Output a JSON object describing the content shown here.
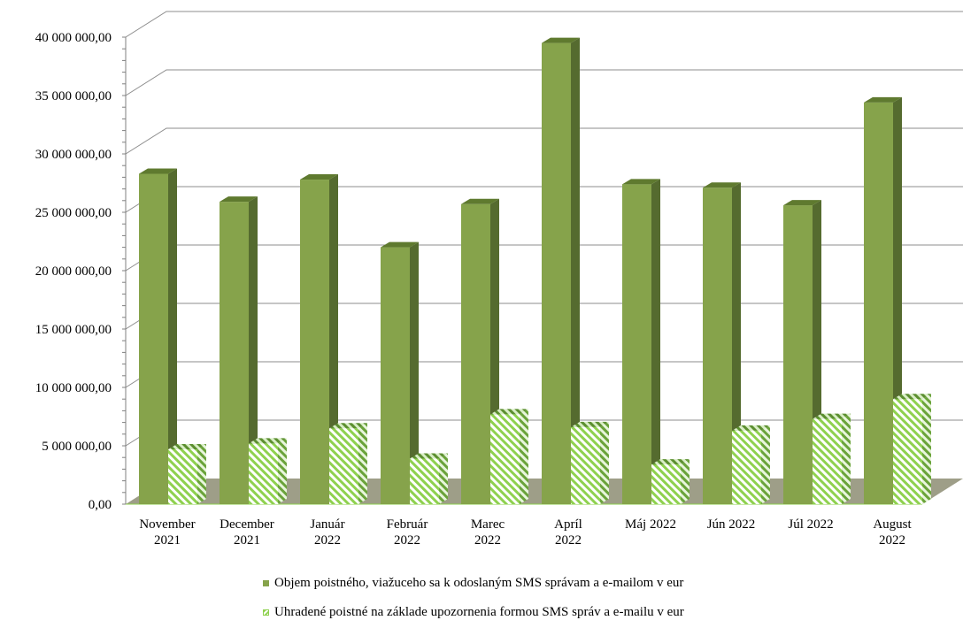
{
  "chart_data": {
    "type": "bar",
    "categories": [
      [
        "November",
        "2021"
      ],
      [
        "December",
        "2021"
      ],
      [
        "Január",
        "2022"
      ],
      [
        "Február",
        "2022"
      ],
      [
        "Marec",
        "2022"
      ],
      [
        "Apríl",
        "2022"
      ],
      [
        "Máj 2022"
      ],
      [
        "Jún 2022"
      ],
      [
        "Júl 2022"
      ],
      [
        "August",
        "2022"
      ]
    ],
    "series": [
      {
        "name": "Objem poistného, viažuceho sa k odoslaným SMS správam a e-mailom v eur",
        "values": [
          28300000,
          25900000,
          27800000,
          22000000,
          25700000,
          39500000,
          27400000,
          27100000,
          25600000,
          34400000
        ]
      },
      {
        "name": "Uhradené poistné na základe upozornenia formou SMS správ a e-mailu v eur",
        "values": [
          4700000,
          5200000,
          6500000,
          3900000,
          7700000,
          6600000,
          3400000,
          6300000,
          7300000,
          9000000
        ]
      }
    ],
    "y_ticks": [
      "0,00",
      "5 000 000,00",
      "10 000 000,00",
      "15 000 000,00",
      "20 000 000,00",
      "25 000 000,00",
      "30 000 000,00",
      "35 000 000,00",
      "40 000 000,00"
    ],
    "ylim": [
      0,
      40000000
    ],
    "grid": true,
    "legend_position": "bottom",
    "colors": {
      "series1_front": "#86A34B",
      "series1_side": "#556B2F",
      "series1_top": "#5F7A2F",
      "series2_hatch": "#8fd14f",
      "floor": "#9E9E88",
      "grid": "#8c8c8c"
    }
  }
}
